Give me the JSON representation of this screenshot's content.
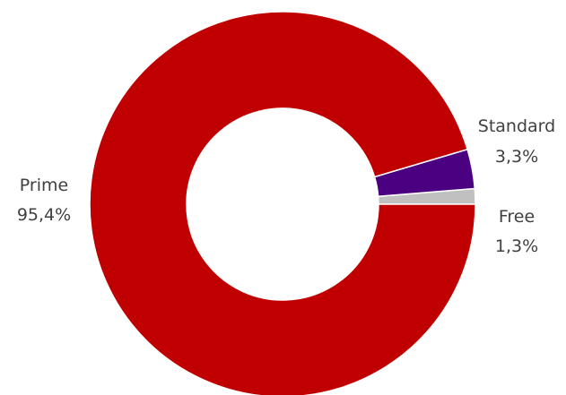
{
  "chart_data": {
    "type": "pie",
    "variant": "donut",
    "categories": [
      "Prime",
      "Standard",
      "Free"
    ],
    "series": [
      {
        "values": [
          95.4,
          3.3,
          1.3
        ],
        "value_labels": [
          "95,4%",
          "3,3%",
          "1,3%"
        ]
      }
    ],
    "colors": [
      "#c00000",
      "#4b0082",
      "#c0c0c0"
    ],
    "start_angle_clock_position": "3 o'clock",
    "direction": "clockwise",
    "legend": "none",
    "labels_position": "outside"
  }
}
